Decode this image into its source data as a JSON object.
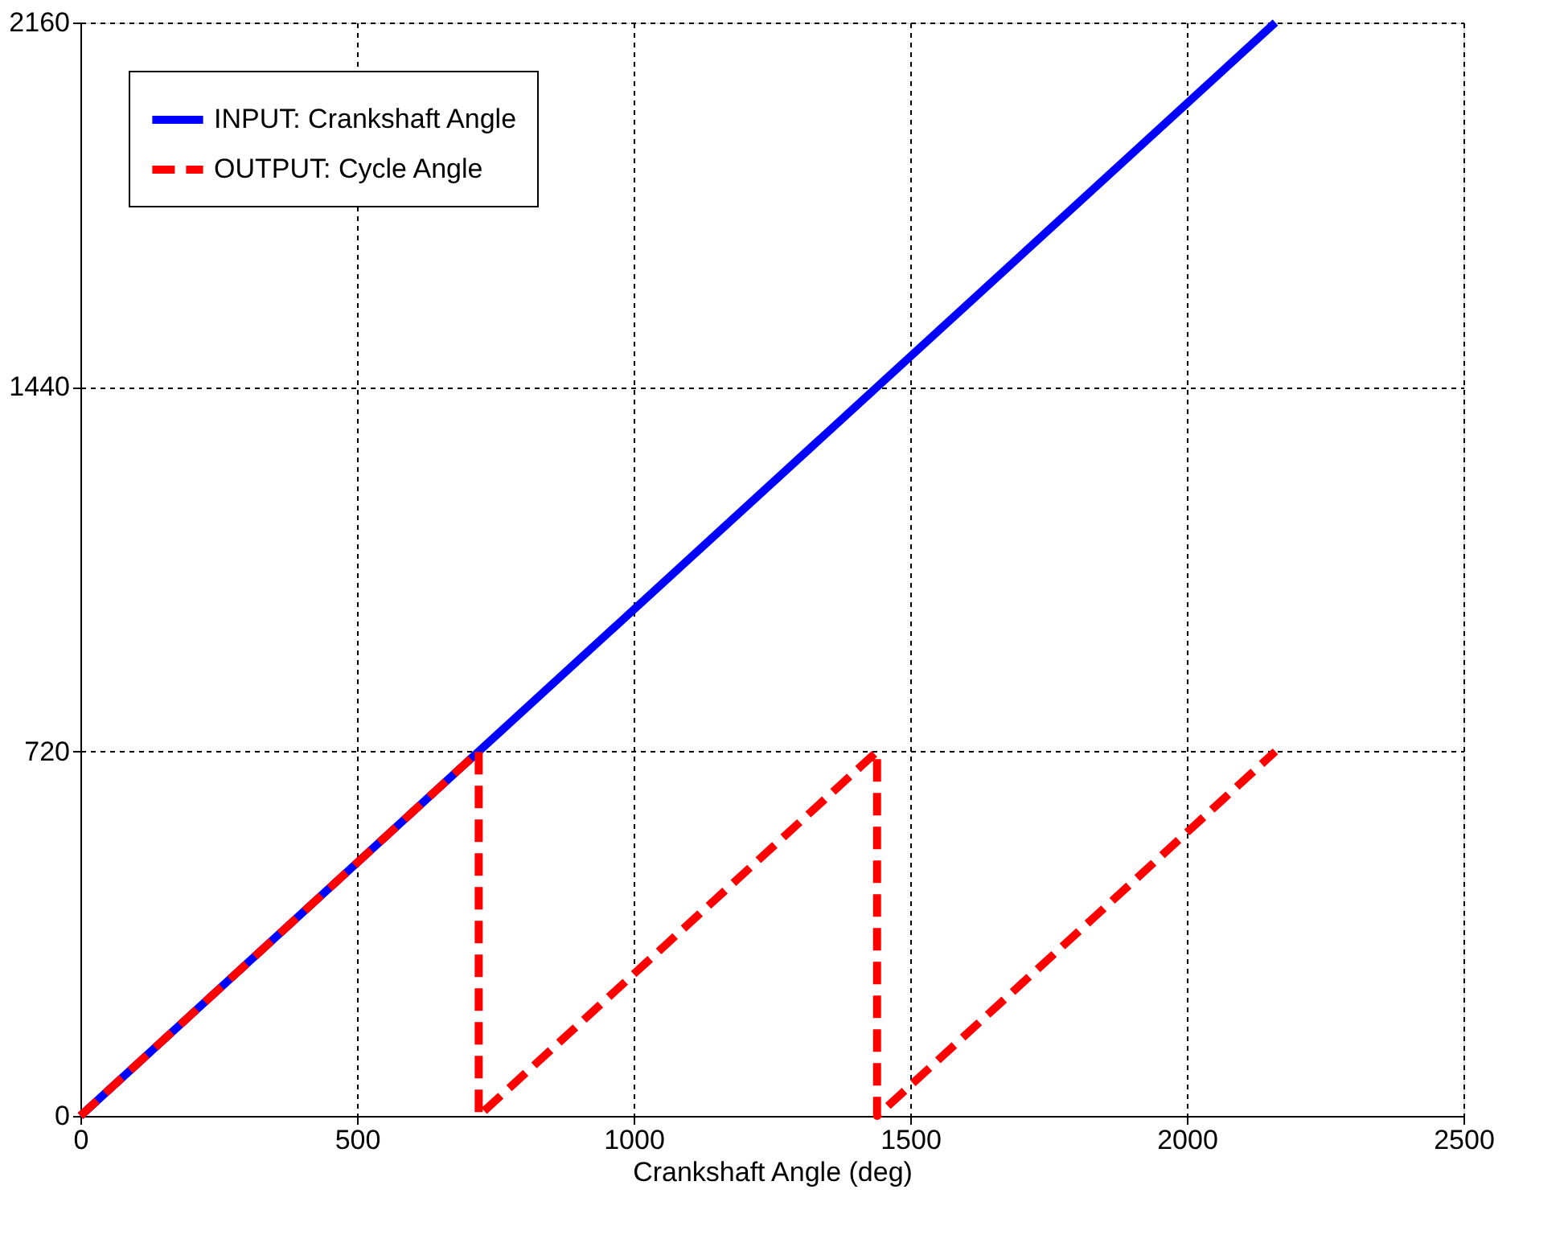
{
  "chart_data": {
    "type": "line",
    "xlabel": "Crankshaft Angle (deg)",
    "xlim": [
      0,
      2500
    ],
    "xticks": [
      0,
      500,
      1000,
      1500,
      2000,
      2500
    ],
    "ylim": [
      0,
      2160
    ],
    "yticks": [
      0,
      720,
      1440,
      2160
    ],
    "grid": true,
    "legend": "top left",
    "series": [
      {
        "name": "INPUT: Crankshaft Angle",
        "color": "#0000ff",
        "line_style": "solid",
        "x": [
          0,
          2160
        ],
        "values": [
          0,
          2160
        ]
      },
      {
        "name": "OUTPUT: Cycle Angle",
        "color": "#ff0000",
        "line_style": "dashed",
        "x": [
          0,
          720,
          720,
          1440,
          1440,
          2160
        ],
        "values": [
          0,
          720,
          0,
          720,
          0,
          720
        ]
      }
    ]
  }
}
